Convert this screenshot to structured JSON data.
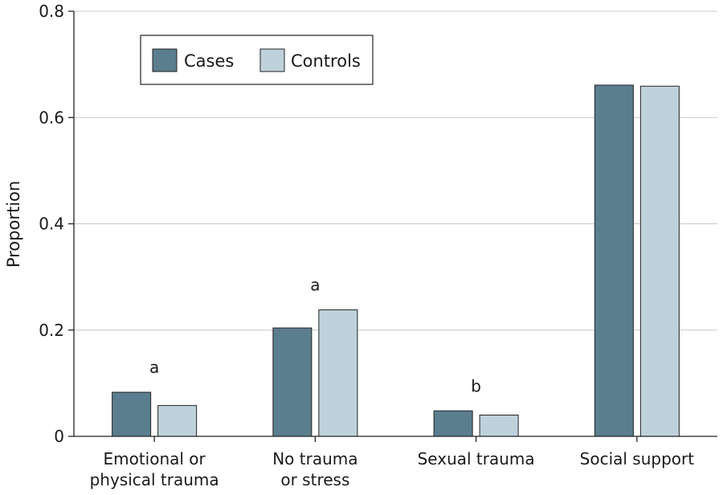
{
  "chart_data": {
    "type": "bar",
    "ylabel": "Proportion",
    "xlabel": "",
    "ylim": [
      0,
      0.8
    ],
    "yticks": [
      0,
      0.2,
      0.4,
      0.6,
      0.8
    ],
    "ytick_labels": [
      "0",
      "0.2",
      "0.4",
      "0.6",
      "0.8"
    ],
    "grid": "horizontal",
    "legend_position": "top-left",
    "categories": [
      [
        "Emotional or",
        "physical trauma"
      ],
      [
        "No trauma",
        "or stress"
      ],
      [
        "Sexual trauma"
      ],
      [
        "Social support"
      ]
    ],
    "series": [
      {
        "name": "Cases",
        "color": "#5b7e8f",
        "values": [
          0.083,
          0.204,
          0.048,
          0.661
        ]
      },
      {
        "name": "Controls",
        "color": "#bfd2dc",
        "values": [
          0.058,
          0.238,
          0.04,
          0.659
        ]
      }
    ],
    "annotations": [
      "a",
      "a",
      "b",
      ""
    ]
  }
}
